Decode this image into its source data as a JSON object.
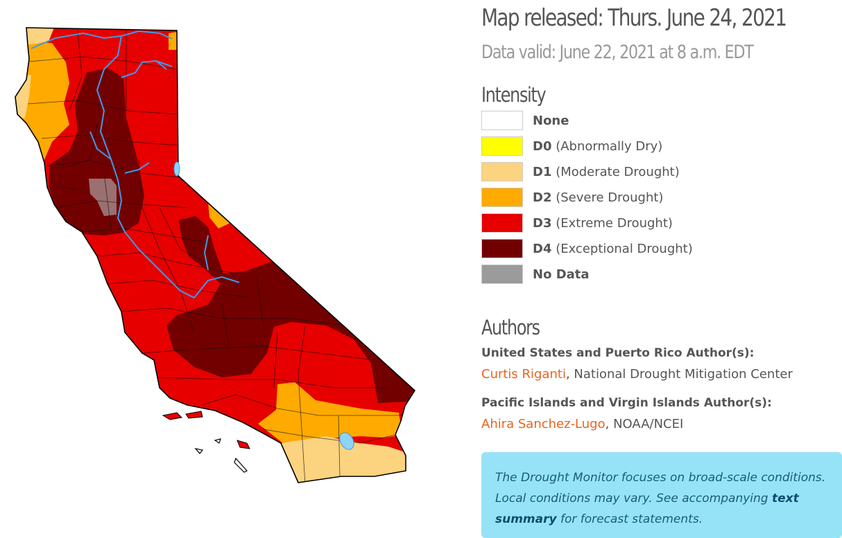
{
  "header": {
    "released": "Map released: Thurs. June 24, 2021",
    "valid": "Data valid: June 22, 2021 at 8 a.m. EDT"
  },
  "intensity": {
    "heading": "Intensity",
    "items": [
      {
        "code": "None",
        "desc": "",
        "color": "#ffffff"
      },
      {
        "code": "D0",
        "desc": " (Abnormally Dry)",
        "color": "#ffff00"
      },
      {
        "code": "D1",
        "desc": " (Moderate Drought)",
        "color": "#fcd37f"
      },
      {
        "code": "D2",
        "desc": " (Severe Drought)",
        "color": "#ffaa00"
      },
      {
        "code": "D3",
        "desc": " (Extreme Drought)",
        "color": "#e60000"
      },
      {
        "code": "D4",
        "desc": " (Exceptional Drought)",
        "color": "#730000"
      },
      {
        "code": "No Data",
        "desc": "",
        "color": "#9b9b9b"
      }
    ]
  },
  "authors": {
    "heading": "Authors",
    "us_label": "United States and Puerto Rico Author(s):",
    "us_name": "Curtis Riganti",
    "us_org": ", National Drought Mitigation Center",
    "pi_label": "Pacific Islands and Virgin Islands Author(s):",
    "pi_name": "Ahira Sanchez-Lugo",
    "pi_org": ", NOAA/NCEI"
  },
  "note": {
    "text_before": "The Drought Monitor focuses on broad-scale conditions. Local conditions may vary. See accompanying ",
    "link": "text summary",
    "text_after": " for forecast statements."
  },
  "map": {
    "state": "California",
    "colors": {
      "d1": "#fcd37f",
      "d2": "#ffaa00",
      "d3": "#e60000",
      "d4": "#730000",
      "nodata": "#9b7070",
      "water": "#3d9be9",
      "lake": "#8fd3f5"
    }
  }
}
